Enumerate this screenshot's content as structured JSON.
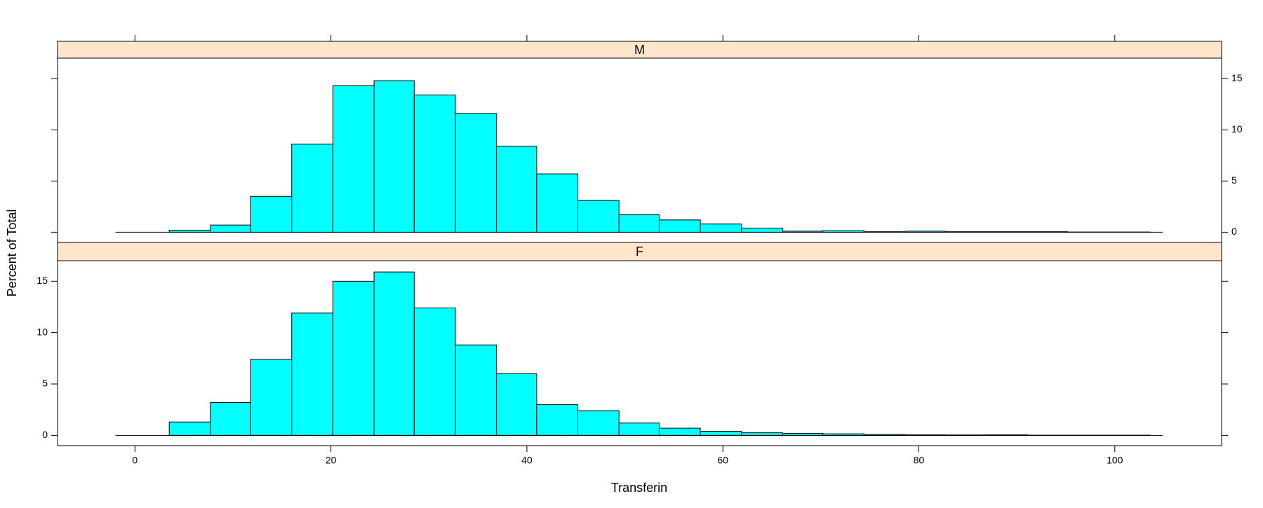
{
  "chart_data": {
    "type": "histogram",
    "xlabel": "Transferin",
    "ylabel": "Percent of Total",
    "bins": [
      -0.7,
      3.5,
      7.7,
      11.8,
      16.0,
      20.2,
      24.4,
      28.5,
      32.7,
      36.9,
      41.0,
      45.2,
      49.4,
      53.5,
      57.7,
      61.9,
      66.1,
      70.2,
      74.4,
      78.6,
      82.7,
      86.9,
      91.1,
      95.2,
      99.4,
      103.6
    ],
    "series": [
      {
        "name": "M",
        "color": "#00ffff",
        "values": [
          0,
          0.2,
          0.7,
          3.5,
          8.6,
          14.3,
          14.8,
          13.4,
          11.6,
          8.4,
          5.7,
          3.1,
          1.7,
          1.2,
          0.8,
          0.4,
          0.1,
          0.15,
          0.05,
          0.1,
          0.05,
          0.05,
          0.05,
          0.02,
          0.02
        ]
      },
      {
        "name": "F",
        "color": "#00ffff",
        "values": [
          0,
          1.3,
          3.2,
          7.4,
          11.9,
          15.0,
          15.9,
          12.4,
          8.8,
          6.0,
          3.0,
          2.4,
          1.2,
          0.7,
          0.4,
          0.25,
          0.2,
          0.15,
          0.08,
          0.05,
          0.04,
          0.05,
          0.02,
          0.02,
          0.02
        ]
      }
    ],
    "xlim": [
      -7.9,
      110.9
    ],
    "xticks": [
      0,
      20,
      40,
      60,
      80,
      100
    ],
    "ylim": [
      -1,
      17
    ],
    "yticks": [
      0,
      5,
      10,
      15
    ]
  }
}
